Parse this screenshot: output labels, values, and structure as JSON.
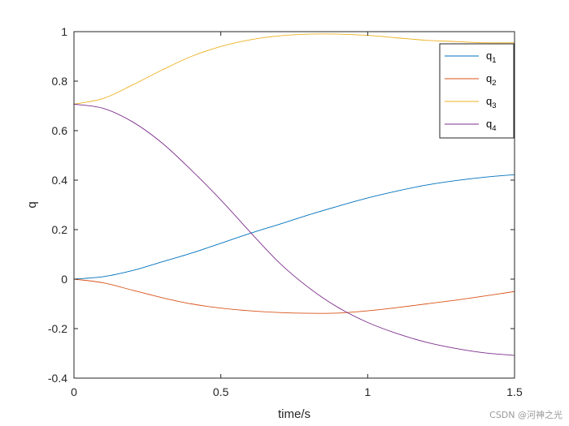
{
  "chart_data": {
    "type": "line",
    "xlabel": "time/s",
    "ylabel": "q",
    "xlim": [
      0,
      1.5
    ],
    "ylim": [
      -0.4,
      1
    ],
    "xticks": [
      "0",
      "0.5",
      "1",
      "1.5"
    ],
    "yticks": [
      "-0.4",
      "-0.2",
      "0",
      "0.2",
      "0.4",
      "0.6",
      "0.8",
      "1"
    ],
    "grid": false,
    "legend_position": "top-right",
    "x": [
      0,
      0.1,
      0.2,
      0.3,
      0.4,
      0.5,
      0.6,
      0.7,
      0.8,
      0.9,
      1.0,
      1.1,
      1.2,
      1.3,
      1.4,
      1.5
    ],
    "series": [
      {
        "name": "q",
        "sub": "1",
        "color": "#0072BD",
        "values": [
          0,
          0.01,
          0.035,
          0.07,
          0.105,
          0.145,
          0.185,
          0.222,
          0.26,
          0.295,
          0.328,
          0.356,
          0.38,
          0.398,
          0.412,
          0.422
        ]
      },
      {
        "name": "q",
        "sub": "2",
        "color": "#D95319",
        "values": [
          0,
          -0.015,
          -0.045,
          -0.075,
          -0.1,
          -0.117,
          -0.128,
          -0.135,
          -0.138,
          -0.137,
          -0.128,
          -0.115,
          -0.1,
          -0.085,
          -0.068,
          -0.05
        ]
      },
      {
        "name": "q",
        "sub": "3",
        "color": "#EDB120",
        "values": [
          0.707,
          0.73,
          0.785,
          0.845,
          0.9,
          0.94,
          0.967,
          0.983,
          0.99,
          0.99,
          0.985,
          0.975,
          0.965,
          0.96,
          0.955,
          0.955
        ]
      },
      {
        "name": "q",
        "sub": "4",
        "color": "#7E2F8E",
        "values": [
          0.707,
          0.69,
          0.635,
          0.55,
          0.44,
          0.32,
          0.19,
          0.065,
          -0.035,
          -0.115,
          -0.175,
          -0.22,
          -0.255,
          -0.28,
          -0.298,
          -0.308
        ]
      }
    ]
  },
  "watermark": "CSDN @河神之光"
}
